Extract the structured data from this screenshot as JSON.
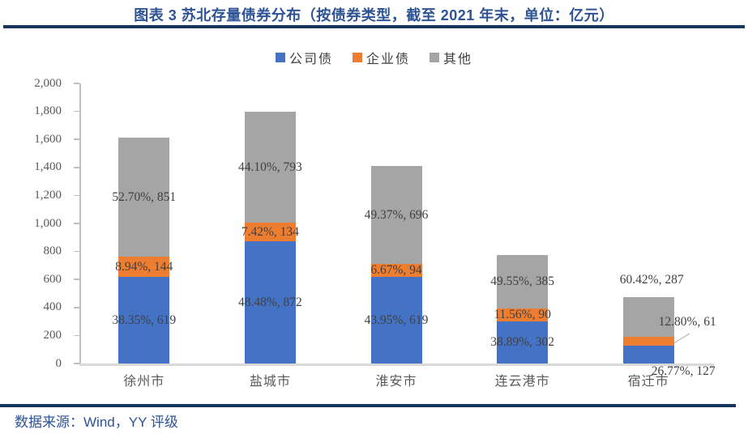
{
  "header": {
    "title": "图表 3 苏北存量债券分布（按债券类型，截至 2021 年末，单位：亿元）"
  },
  "footer": {
    "source": "数据来源：Wind，YY 评级"
  },
  "colors": {
    "rule_navy": "#17365D",
    "heading_blue": "#2E5395",
    "series_blue": "#4472C4",
    "series_orange": "#ED7D31",
    "series_gray": "#A5A5A5",
    "axis_text": "#595959",
    "label_text": "#404040",
    "axis_line": "#BFBFBF",
    "baseline": "#D9D9D9",
    "leader_line": "#A6A6A6"
  },
  "chart_data": {
    "type": "bar",
    "variant": "stacked-vertical",
    "title": "图表 3 苏北存量债券分布（按债券类型，截至 2021 年末，单位：亿元）",
    "unit": "亿元",
    "categories": [
      "徐州市",
      "盐城市",
      "淮安市",
      "连云港市",
      "宿迁市"
    ],
    "series": [
      {
        "key": "company-bond",
        "name": "公司债",
        "color": "#4472C4",
        "values": [
          619,
          872,
          619,
          302,
          127
        ],
        "percents": [
          "38.35%",
          "48.48%",
          "43.95%",
          "38.89%",
          "26.77%"
        ]
      },
      {
        "key": "enterprise-bond",
        "name": "企业债",
        "color": "#ED7D31",
        "values": [
          144,
          134,
          94,
          90,
          61
        ],
        "percents": [
          "8.94%",
          "7.42%",
          "6.67%",
          "11.56%",
          "12.80%"
        ]
      },
      {
        "key": "other",
        "name": "其他",
        "color": "#A5A5A5",
        "values": [
          851,
          793,
          696,
          385,
          287
        ],
        "percents": [
          "52.70%",
          "44.10%",
          "49.37%",
          "49.55%",
          "60.42%"
        ]
      }
    ],
    "totals": [
      1614,
      1799,
      1409,
      777,
      475
    ],
    "ylim": [
      0,
      2000
    ],
    "ytick_step": 200,
    "ytick_labels": [
      "0",
      "200",
      "400",
      "600",
      "800",
      "1,000",
      "1,200",
      "1,400",
      "1,600",
      "1,800",
      "2,000"
    ],
    "grid": false,
    "legend_position": "top-center",
    "label_format": "{percent}, {value}",
    "label_overrides": {
      "4": {
        "0": "below-axis",
        "1": "callout-right",
        "2": "above-stack"
      }
    }
  }
}
